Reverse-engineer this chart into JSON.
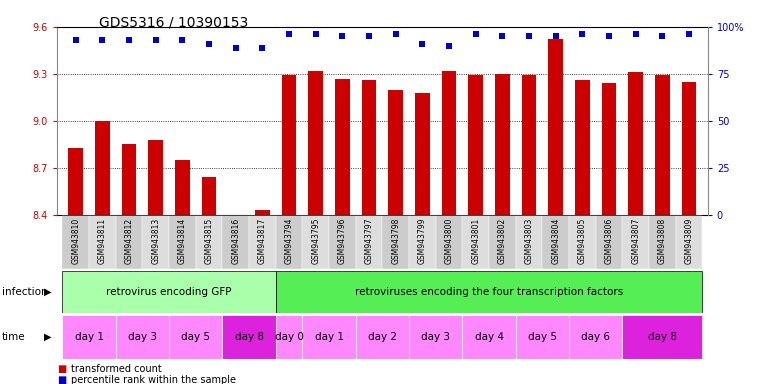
{
  "title": "GDS5316 / 10390153",
  "samples": [
    "GSM943810",
    "GSM943811",
    "GSM943812",
    "GSM943813",
    "GSM943814",
    "GSM943815",
    "GSM943816",
    "GSM943817",
    "GSM943794",
    "GSM943795",
    "GSM943796",
    "GSM943797",
    "GSM943798",
    "GSM943799",
    "GSM943800",
    "GSM943801",
    "GSM943802",
    "GSM943803",
    "GSM943804",
    "GSM943805",
    "GSM943806",
    "GSM943807",
    "GSM943808",
    "GSM943809"
  ],
  "bar_values": [
    8.83,
    9.0,
    8.85,
    8.88,
    8.75,
    8.64,
    8.4,
    8.43,
    9.29,
    9.32,
    9.27,
    9.26,
    9.2,
    9.18,
    9.32,
    9.29,
    9.3,
    9.29,
    9.52,
    9.26,
    9.24,
    9.31,
    9.29,
    9.25
  ],
  "percentile_pct": [
    93,
    93,
    93,
    93,
    93,
    91,
    89,
    89,
    96,
    96,
    95,
    95,
    96,
    91,
    90,
    96,
    95,
    95,
    95,
    96,
    95,
    96,
    95,
    96
  ],
  "ylim_left": [
    8.4,
    9.6
  ],
  "ylim_right": [
    0,
    100
  ],
  "yticks_left": [
    8.4,
    8.7,
    9.0,
    9.3,
    9.6
  ],
  "yticks_right": [
    0,
    25,
    50,
    75,
    100
  ],
  "bar_color": "#cc0000",
  "dot_color": "#0000cc",
  "bar_bottom": 8.4,
  "infection_groups": [
    {
      "label": "retrovirus encoding GFP",
      "start": 0,
      "end": 8,
      "color": "#aaffaa"
    },
    {
      "label": "retroviruses encoding the four transcription factors",
      "start": 8,
      "end": 24,
      "color": "#55ee55"
    }
  ],
  "time_groups": [
    {
      "label": "day 1",
      "start": 0,
      "end": 2,
      "color": "#ff88ff"
    },
    {
      "label": "day 3",
      "start": 2,
      "end": 4,
      "color": "#ff88ff"
    },
    {
      "label": "day 5",
      "start": 4,
      "end": 6,
      "color": "#ff88ff"
    },
    {
      "label": "day 8",
      "start": 6,
      "end": 8,
      "color": "#dd22dd"
    },
    {
      "label": "day 0",
      "start": 8,
      "end": 9,
      "color": "#ff88ff"
    },
    {
      "label": "day 1",
      "start": 9,
      "end": 11,
      "color": "#ff88ff"
    },
    {
      "label": "day 2",
      "start": 11,
      "end": 13,
      "color": "#ff88ff"
    },
    {
      "label": "day 3",
      "start": 13,
      "end": 15,
      "color": "#ff88ff"
    },
    {
      "label": "day 4",
      "start": 15,
      "end": 17,
      "color": "#ff88ff"
    },
    {
      "label": "day 5",
      "start": 17,
      "end": 19,
      "color": "#ff88ff"
    },
    {
      "label": "day 6",
      "start": 19,
      "end": 21,
      "color": "#ff88ff"
    },
    {
      "label": "day 8",
      "start": 21,
      "end": 24,
      "color": "#dd22dd"
    }
  ],
  "legend_items": [
    {
      "color": "#cc0000",
      "label": "transformed count"
    },
    {
      "color": "#0000cc",
      "label": "percentile rank within the sample"
    }
  ],
  "background_color": "#ffffff",
  "title_fontsize": 10,
  "tick_fontsize": 7,
  "label_fontsize": 8
}
